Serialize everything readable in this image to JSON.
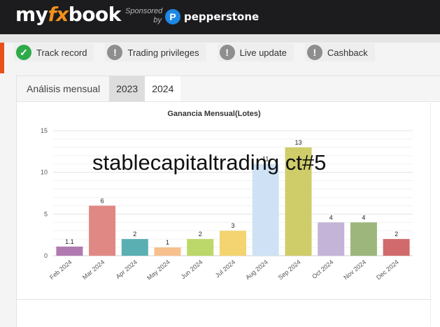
{
  "header": {
    "logo_my": "my",
    "logo_fx": "fx",
    "logo_book": "book",
    "sponsored_line1": "Sponsored",
    "sponsored_line2": "by",
    "sponsor_name": "pepperstone",
    "sponsor_icon": "pepperstone-p-icon"
  },
  "badges": [
    {
      "label": "Track record",
      "icon": "check-icon",
      "status_color": "#2eaa4a"
    },
    {
      "label": "Trading privileges",
      "icon": "exclamation-icon",
      "status_color": "#8e8e8e"
    },
    {
      "label": "Live update",
      "icon": "exclamation-icon",
      "status_color": "#8e8e8e"
    },
    {
      "label": "Cashback",
      "icon": "exclamation-icon",
      "status_color": "#8e8e8e"
    }
  ],
  "tabs": {
    "title": "Análisis mensual",
    "year_2023": "2023",
    "year_2024": "2024",
    "selected": "2024"
  },
  "watermark": "stablecapitaltrading ct#5",
  "chart_data": {
    "type": "bar",
    "title": "Ganancia Mensual(Lotes)",
    "xlabel": "",
    "ylabel": "",
    "ylim": [
      0,
      15
    ],
    "yticks": [
      0,
      5,
      10,
      15
    ],
    "grid": true,
    "categories": [
      "Feb 2024",
      "Mar 2024",
      "Apr 2024",
      "May 2024",
      "Jun 2024",
      "Jul 2024",
      "Aug 2024",
      "Sep 2024",
      "Oct 2024",
      "Nov 2024",
      "Dec 2024"
    ],
    "values": [
      1.1,
      6,
      2,
      1,
      2,
      3,
      11,
      13,
      4,
      4,
      2
    ],
    "labels": [
      "1.1",
      "6",
      "2",
      "1",
      "2",
      "3",
      "11",
      "13",
      "4",
      "4",
      "2"
    ],
    "colors": [
      "#b07ab0",
      "#e08884",
      "#5aafb3",
      "#f8c08c",
      "#bcd86a",
      "#f4d470",
      "#cfe2f5",
      "#cfcd6a",
      "#c4b4d8",
      "#9cb67c",
      "#d06a6c"
    ]
  }
}
